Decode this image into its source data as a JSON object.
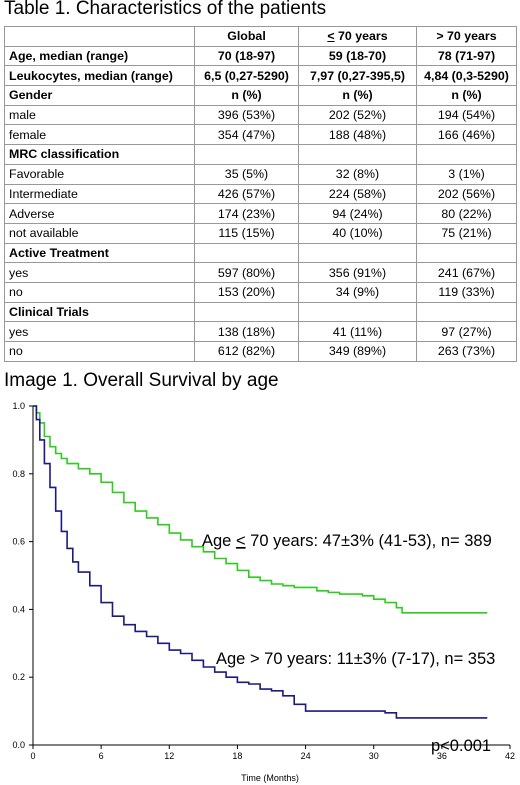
{
  "table": {
    "title": "Table 1. Characteristics of the patients",
    "header": {
      "global": "Global",
      "lt70_prefix": "<",
      "lt70_rest": " 70 years",
      "gt70": "> 70 years"
    },
    "rows": [
      {
        "label": "Age, median (range)",
        "bold": true,
        "global": "70 (18-97)",
        "lt70": "59 (18-70)",
        "gt70": "78 (71-97)"
      },
      {
        "label": "Leukocytes, median (range)",
        "bold": true,
        "global": "6,5 (0,27-5290)",
        "lt70": "7,97 (0,27-395,5)",
        "gt70": "4,84 (0,3-5290)"
      },
      {
        "label": "Gender",
        "bold": true,
        "global": "n (%)",
        "lt70": "n (%)",
        "gt70": "n (%)"
      },
      {
        "label": "male",
        "bold": false,
        "global": "396 (53%)",
        "lt70": "202 (52%)",
        "gt70": "194 (54%)"
      },
      {
        "label": "female",
        "bold": false,
        "global": "354 (47%)",
        "lt70": "188 (48%)",
        "gt70": "166 (46%)"
      },
      {
        "label": "MRC classification",
        "bold": true,
        "global": "",
        "lt70": "",
        "gt70": ""
      },
      {
        "label": "Favorable",
        "bold": false,
        "global": "35 (5%)",
        "lt70": "32 (8%)",
        "gt70": "3 (1%)"
      },
      {
        "label": "Intermediate",
        "bold": false,
        "global": "426 (57%)",
        "lt70": "224 (58%)",
        "gt70": "202 (56%)"
      },
      {
        "label": "Adverse",
        "bold": false,
        "global": "174 (23%)",
        "lt70": "94 (24%)",
        "gt70": "80 (22%)"
      },
      {
        "label": "not available",
        "bold": false,
        "global": "115 (15%)",
        "lt70": "40 (10%)",
        "gt70": "75 (21%)"
      },
      {
        "label": "Active Treatment",
        "bold": true,
        "global": "",
        "lt70": "",
        "gt70": ""
      },
      {
        "label": "yes",
        "bold": false,
        "global": "597 (80%)",
        "lt70": "356 (91%)",
        "gt70": "241 (67%)"
      },
      {
        "label": "no",
        "bold": false,
        "global": "153 (20%)",
        "lt70": "34 (9%)",
        "gt70": "119 (33%)"
      },
      {
        "label": "Clinical Trials",
        "bold": true,
        "global": "",
        "lt70": "",
        "gt70": ""
      },
      {
        "label": "yes",
        "bold": false,
        "global": "138 (18%)",
        "lt70": "41 (11%)",
        "gt70": "97 (27%)"
      },
      {
        "label": "no",
        "bold": false,
        "global": "612 (82%)",
        "lt70": "349 (89%)",
        "gt70": "263 (73%)"
      }
    ]
  },
  "image_title": "Image 1. Overall Survival by age",
  "chart_data": {
    "type": "line",
    "xlabel": "Time (Months)",
    "ylabel": "",
    "xlim": [
      0,
      42
    ],
    "ylim": [
      0,
      1.0
    ],
    "xticks": [
      0,
      6,
      12,
      18,
      24,
      30,
      36,
      42
    ],
    "yticks": [
      0.0,
      0.2,
      0.4,
      0.6,
      0.8,
      1.0
    ],
    "ytick_labels": [
      "0.0",
      "0.2",
      "0.4",
      "0.6",
      "0.8",
      "1.0"
    ],
    "grid": false,
    "series": [
      {
        "color": "#2ecc1f",
        "x": [
          0,
          0.3,
          0.6,
          1,
          1.5,
          2,
          2.5,
          3,
          4,
          5,
          6,
          7,
          8,
          9,
          10,
          11,
          12,
          13,
          14,
          15,
          16,
          17,
          18,
          19,
          20,
          21,
          22,
          23,
          24,
          25,
          26,
          27,
          28,
          29,
          30,
          31,
          32,
          32.5,
          33,
          34,
          36,
          38,
          40
        ],
        "y": [
          1.0,
          0.98,
          0.95,
          0.91,
          0.88,
          0.86,
          0.845,
          0.83,
          0.815,
          0.8,
          0.775,
          0.745,
          0.715,
          0.69,
          0.67,
          0.65,
          0.625,
          0.605,
          0.585,
          0.57,
          0.55,
          0.535,
          0.515,
          0.495,
          0.485,
          0.475,
          0.47,
          0.465,
          0.465,
          0.455,
          0.45,
          0.445,
          0.445,
          0.44,
          0.43,
          0.42,
          0.405,
          0.39,
          0.39,
          0.39,
          0.39,
          0.39,
          0.39
        ]
      },
      {
        "color": "#1a1a80",
        "x": [
          0,
          0.3,
          0.6,
          1,
          1.5,
          2,
          2.5,
          3,
          3.5,
          4,
          5,
          6,
          7,
          8,
          9,
          10,
          11,
          12,
          13,
          14,
          15,
          16,
          17,
          18,
          19,
          20,
          21,
          22,
          23,
          24,
          26,
          28,
          30,
          31,
          32,
          32.5,
          34,
          36,
          38,
          40
        ],
        "y": [
          1.0,
          0.96,
          0.9,
          0.83,
          0.76,
          0.69,
          0.63,
          0.58,
          0.54,
          0.51,
          0.47,
          0.42,
          0.38,
          0.355,
          0.335,
          0.32,
          0.3,
          0.28,
          0.27,
          0.25,
          0.23,
          0.215,
          0.2,
          0.185,
          0.18,
          0.165,
          0.16,
          0.145,
          0.12,
          0.1,
          0.1,
          0.1,
          0.1,
          0.095,
          0.08,
          0.08,
          0.08,
          0.08,
          0.08,
          0.08
        ]
      }
    ],
    "annotations": {
      "lt70_prefix": "Age ",
      "lt70_sym": "<",
      "lt70_rest": " 70 years: 47±3% (41-53), n= 389",
      "gt70": "Age > 70 years: 11±3% (7-17), n= 353",
      "pvalue": "p<0.001"
    }
  }
}
